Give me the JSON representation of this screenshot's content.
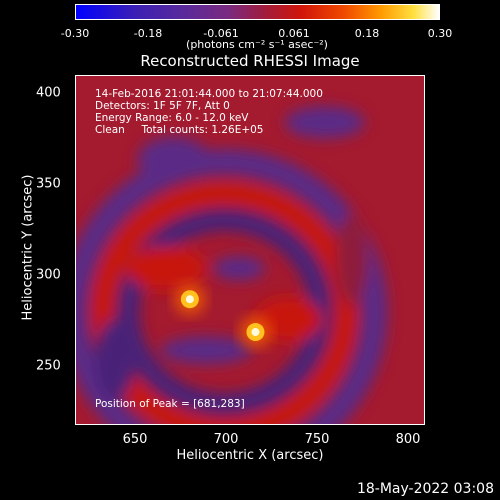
{
  "colorbar": {
    "ticks": [
      "-0.30",
      "-0.18",
      "-0.061",
      "0.061",
      "0.18",
      "0.30"
    ],
    "unit": "(photons cm⁻² s⁻¹ asec⁻²)"
  },
  "chart_data": {
    "type": "heatmap",
    "title": "Reconstructed RHESSI Image",
    "xlabel": "Heliocentric X (arcsec)",
    "ylabel": "Heliocentric Y (arcsec)",
    "xlim": [
      618,
      810
    ],
    "ylim": [
      214,
      406
    ],
    "xticks": [
      "650",
      "700",
      "750",
      "800"
    ],
    "yticks": [
      "250",
      "300",
      "350",
      "400"
    ],
    "color_range": [
      -0.3,
      0.3
    ],
    "info": {
      "time": "14-Feb-2016 21:01:44.000 to 21:07:44.000",
      "detectors": "Detectors: 1F 5F 7F, Att 0",
      "energy": "Energy Range: 6.0 - 12.0 keV",
      "clean": "Clean     Total counts: 1.26E+05",
      "peak": "Position of Peak = [681,283]"
    },
    "sources": [
      {
        "x": 681,
        "y": 283,
        "peak": 0.3
      },
      {
        "x": 717,
        "y": 265,
        "peak": 0.28
      }
    ]
  },
  "datestamp": "18-May-2022 03:08"
}
